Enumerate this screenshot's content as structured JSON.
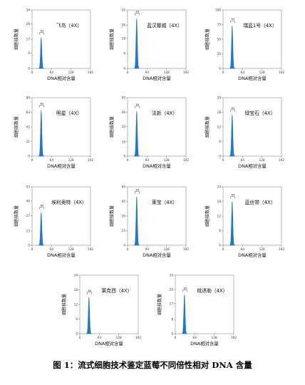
{
  "caption": "图 1：流式细胞技术鉴定蓝莓不同倍性相对 DNA 含量",
  "chart_data": [
    {
      "type": "area",
      "title": "飞鸟（4X）",
      "xlabel": "DNA相对含量",
      "ylabel": "细胞核数量",
      "xticks": [
        0,
        64,
        128,
        192
      ],
      "yticks": [
        0,
        9,
        17,
        26,
        34
      ],
      "ylim": [
        0,
        34
      ],
      "xlim": [
        0,
        192
      ],
      "gate_label": "R4",
      "peak": {
        "x": 30,
        "height": 18,
        "sigma": 2.2
      }
    },
    {
      "type": "area",
      "title": "蓝汉娜威（4X）",
      "xlabel": "DNA相对含量",
      "ylabel": "细胞核数量",
      "xticks": [
        0,
        64,
        128,
        192
      ],
      "yticks": [
        0,
        9,
        18,
        26,
        35
      ],
      "ylim": [
        0,
        35
      ],
      "xlim": [
        0,
        192
      ],
      "gate_label": "R4",
      "peak": {
        "x": 30,
        "height": 30,
        "sigma": 2.2
      }
    },
    {
      "type": "area",
      "title": "瑞蓝1号（4X）",
      "xlabel": "DNA相对含量",
      "ylabel": "细胞核数量",
      "xticks": [
        0,
        64,
        128,
        192
      ],
      "yticks": [
        0,
        25,
        50,
        75,
        100
      ],
      "ylim": [
        0,
        100
      ],
      "xlim": [
        0,
        192
      ],
      "gate_label": "R4",
      "peak": {
        "x": 30,
        "height": 73,
        "sigma": 2.2
      }
    },
    {
      "type": "area",
      "title": "明星（4X）",
      "xlabel": "DNA相对含量",
      "ylabel": "细胞核数量",
      "xticks": [
        0,
        64,
        128,
        192
      ],
      "yticks": [
        0,
        21,
        42,
        63,
        84
      ],
      "ylim": [
        0,
        84
      ],
      "xlim": [
        0,
        192
      ],
      "gate_label": "R4",
      "peak": {
        "x": 30,
        "height": 66,
        "sigma": 2.2
      }
    },
    {
      "type": "area",
      "title": "法新（4X）",
      "xlabel": "DNA相对含量",
      "ylabel": "细胞核数量",
      "xticks": [
        0,
        64,
        128,
        192
      ],
      "yticks": [
        0,
        16,
        33,
        49,
        65
      ],
      "ylim": [
        0,
        65
      ],
      "xlim": [
        0,
        192
      ],
      "gate_label": "R4",
      "peak": {
        "x": 30,
        "height": 50,
        "sigma": 2.2
      }
    },
    {
      "type": "area",
      "title": "绿宝石（4X）",
      "xlabel": "DNA相对含量",
      "ylabel": "细胞核数量",
      "xticks": [
        0,
        64,
        128,
        192
      ],
      "yticks": [
        0,
        6,
        12,
        18,
        24
      ],
      "ylim": [
        0,
        24
      ],
      "xlim": [
        0,
        192
      ],
      "gate_label": "R4",
      "peak": {
        "x": 30,
        "height": 17,
        "sigma": 2.2
      }
    },
    {
      "type": "area",
      "title": "埃利奥特（4X）",
      "xlabel": "DNA相对含量",
      "ylabel": "细胞核数量",
      "xticks": [
        0,
        64,
        128,
        192
      ],
      "yticks": [
        0,
        13,
        27,
        40,
        53
      ],
      "ylim": [
        0,
        53
      ],
      "xlim": [
        0,
        192
      ],
      "gate_label": "R4",
      "peak": {
        "x": 30,
        "height": 30,
        "sigma": 2.2
      }
    },
    {
      "type": "area",
      "title": "莱宝（4X）",
      "xlabel": "DNA相对含量",
      "ylabel": "细胞核数量",
      "xticks": [
        0,
        64,
        128,
        192
      ],
      "yticks": [
        0,
        15,
        30,
        45,
        60
      ],
      "ylim": [
        0,
        60
      ],
      "xlim": [
        0,
        192
      ],
      "gate_label": "R4",
      "peak": {
        "x": 30,
        "height": 50,
        "sigma": 2.2
      }
    },
    {
      "type": "area",
      "title": "蓝丝带（4X）",
      "xlabel": "DNA相对含量",
      "ylabel": "细胞核数量",
      "xticks": [
        0,
        64,
        128,
        192
      ],
      "yticks": [
        0,
        6,
        12,
        18,
        24
      ],
      "ylim": [
        0,
        24
      ],
      "xlim": [
        0,
        192
      ],
      "gate_label": "R4",
      "peak": {
        "x": 30,
        "height": 18,
        "sigma": 2.2
      }
    },
    {
      "type": "area",
      "title": "莱克西（4X）",
      "xlabel": "DNA相对含量",
      "ylabel": "细胞核数量",
      "xticks": [
        0,
        64,
        128,
        192
      ],
      "yticks": [
        0,
        6,
        12,
        18,
        24
      ],
      "ylim": [
        0,
        24
      ],
      "xlim": [
        0,
        192
      ],
      "gate_label": "R4",
      "peak": {
        "x": 30,
        "height": 15,
        "sigma": 2.2
      }
    },
    {
      "type": "area",
      "title": "桃诱勒（4X）",
      "xlabel": "DNA相对含量",
      "ylabel": "细胞核数量",
      "xticks": [
        0,
        64,
        128,
        192
      ],
      "yticks": [
        0,
        8,
        17,
        25,
        33
      ],
      "ylim": [
        0,
        33
      ],
      "xlim": [
        0,
        192
      ],
      "gate_label": "R4",
      "peak": {
        "x": 30,
        "height": 22,
        "sigma": 2.2
      }
    }
  ]
}
